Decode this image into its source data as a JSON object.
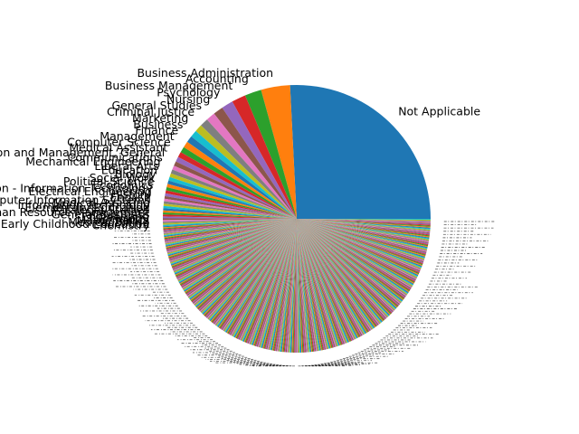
{
  "chart_data": {
    "type": "pie",
    "start_angle_deg": 0,
    "direction": "counterclockwise",
    "hidden_label_count": 420,
    "slices": [
      {
        "label": "Not Applicable",
        "value": 25.8,
        "color": "#1f77b4"
      },
      {
        "label": "Business Administration",
        "value": 3.5,
        "color": "#ff7f0e"
      },
      {
        "label": "Accounting",
        "value": 2.0,
        "color": "#2ca02c"
      },
      {
        "label": "Business Management",
        "value": 1.7,
        "color": "#d62728"
      },
      {
        "label": "Psychology",
        "value": 1.4,
        "color": "#9467bd"
      },
      {
        "label": "Nursing",
        "value": 1.2,
        "color": "#8c564b"
      },
      {
        "label": "General Studies",
        "value": 1.1,
        "color": "#e377c2"
      },
      {
        "label": "Criminal Justice",
        "value": 1.0,
        "color": "#7f7f7f"
      },
      {
        "label": "Marketing",
        "value": 0.9,
        "color": "#bcbd22"
      },
      {
        "label": "Business",
        "value": 0.85,
        "color": "#17becf"
      },
      {
        "label": "Finance",
        "value": 0.8,
        "color": "#1f77b4"
      },
      {
        "label": "Management",
        "value": 0.75,
        "color": "#ff7f0e"
      },
      {
        "label": "Computer Science",
        "value": 0.7,
        "color": "#2ca02c"
      },
      {
        "label": "Medical Assistant",
        "value": 0.65,
        "color": "#d62728"
      },
      {
        "label": "Business Administration and Management, General",
        "value": 0.6,
        "color": "#9467bd"
      },
      {
        "label": "Communications",
        "value": 0.55,
        "color": "#8c564b"
      },
      {
        "label": "Mechanical Engineering",
        "value": 0.5,
        "color": "#e377c2"
      },
      {
        "label": "Liberal Arts",
        "value": 0.48,
        "color": "#7f7f7f"
      },
      {
        "label": "Education",
        "value": 0.46,
        "color": "#bcbd22"
      },
      {
        "label": "Biology",
        "value": 0.44,
        "color": "#17becf"
      },
      {
        "label": "Social Work",
        "value": 0.42,
        "color": "#1f77b4"
      },
      {
        "label": "Political Science",
        "value": 0.4,
        "color": "#ff7f0e"
      },
      {
        "label": "Economics",
        "value": 0.38,
        "color": "#2ca02c"
      },
      {
        "label": "Education - Information Technology",
        "value": 0.36,
        "color": "#d62728"
      },
      {
        "label": "Electrical Engineering",
        "value": 0.34,
        "color": "#9467bd"
      },
      {
        "label": "History",
        "value": 0.32,
        "color": "#8c564b"
      },
      {
        "label": "English",
        "value": 0.3,
        "color": "#e377c2"
      },
      {
        "label": "Computer Information Systems",
        "value": 0.29,
        "color": "#7f7f7f"
      },
      {
        "label": "Medical Assisting",
        "value": 0.28,
        "color": "#bcbd22"
      },
      {
        "label": "Information Technology",
        "value": 0.27,
        "color": "#17becf"
      },
      {
        "label": "Elementary Education",
        "value": 0.26,
        "color": "#1f77b4"
      },
      {
        "label": "Paralegal Studies",
        "value": 0.25,
        "color": "#ff7f0e"
      },
      {
        "label": "Human Resource Management",
        "value": 0.24,
        "color": "#2ca02c"
      },
      {
        "label": "General Business",
        "value": 0.23,
        "color": "#d62728"
      },
      {
        "label": "Engineering",
        "value": 0.22,
        "color": "#9467bd"
      },
      {
        "label": "Sociology",
        "value": 0.21,
        "color": "#8c564b"
      },
      {
        "label": "Mathematics",
        "value": 0.2,
        "color": "#e377c2"
      },
      {
        "label": "Medical Billing",
        "value": 0.19,
        "color": "#7f7f7f"
      },
      {
        "label": "Early Childhood Education",
        "value": 0.18,
        "color": "#bcbd22"
      },
      {
        "label": "Chemistry",
        "value": 0.17,
        "color": "#17becf"
      }
    ]
  }
}
